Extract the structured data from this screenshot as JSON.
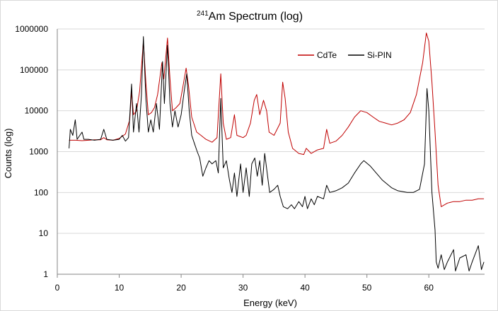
{
  "chart_data": {
    "type": "line",
    "title": {
      "sup": "241",
      "main": "Am Spectrum (log)"
    },
    "xlabel": "Energy (keV)",
    "ylabel": "Counts (log)",
    "xlim": [
      0,
      69
    ],
    "ylim": [
      1,
      1000000
    ],
    "yscale": "log",
    "x_ticks": [
      0,
      10,
      20,
      30,
      40,
      50,
      60
    ],
    "y_ticks": [
      {
        "value": 1,
        "label": "1"
      },
      {
        "value": 10,
        "label": "10"
      },
      {
        "value": 100,
        "label": "100"
      },
      {
        "value": 1000,
        "label": "1000"
      },
      {
        "value": 10000,
        "label": "10000"
      },
      {
        "value": 100000,
        "label": "100000"
      },
      {
        "value": 1000000,
        "label": "1000000"
      }
    ],
    "grid": "horizontal",
    "legend_position": "top-right inside plot",
    "series": [
      {
        "name": "CdTe",
        "color": "#c00000",
        "points": [
          [
            1.9,
            1900
          ],
          [
            3,
            1900
          ],
          [
            4,
            1850
          ],
          [
            5,
            1900
          ],
          [
            6,
            1950
          ],
          [
            7,
            1950
          ],
          [
            7.5,
            2200
          ],
          [
            8,
            1950
          ],
          [
            9,
            1900
          ],
          [
            10,
            2100
          ],
          [
            11,
            2700
          ],
          [
            11.7,
            6000
          ],
          [
            12,
            30000
          ],
          [
            12.3,
            8000
          ],
          [
            12.8,
            10000
          ],
          [
            13.3,
            30000
          ],
          [
            13.9,
            500000
          ],
          [
            14.3,
            50000
          ],
          [
            14.7,
            8000
          ],
          [
            15.2,
            9000
          ],
          [
            15.7,
            12000
          ],
          [
            16.2,
            25000
          ],
          [
            16.9,
            150000
          ],
          [
            17.2,
            60000
          ],
          [
            17.8,
            600000
          ],
          [
            18.2,
            60000
          ],
          [
            18.6,
            10000
          ],
          [
            19.2,
            12000
          ],
          [
            19.8,
            15000
          ],
          [
            20.3,
            40000
          ],
          [
            20.8,
            110000
          ],
          [
            21.2,
            40000
          ],
          [
            21.7,
            7000
          ],
          [
            22.5,
            3000
          ],
          [
            23.2,
            2500
          ],
          [
            24,
            2000
          ],
          [
            25,
            1700
          ],
          [
            25.8,
            2200
          ],
          [
            26.4,
            80000
          ],
          [
            26.8,
            5000
          ],
          [
            27.3,
            2000
          ],
          [
            28,
            2200
          ],
          [
            28.6,
            8000
          ],
          [
            29,
            2500
          ],
          [
            30,
            2200
          ],
          [
            30.5,
            2500
          ],
          [
            31.2,
            5000
          ],
          [
            31.8,
            18000
          ],
          [
            32.2,
            25000
          ],
          [
            32.7,
            8000
          ],
          [
            33.3,
            18000
          ],
          [
            33.8,
            10000
          ],
          [
            34.2,
            3000
          ],
          [
            35,
            2500
          ],
          [
            36,
            5000
          ],
          [
            36.4,
            50000
          ],
          [
            36.8,
            20000
          ],
          [
            37.3,
            3000
          ],
          [
            38,
            1200
          ],
          [
            39,
            900
          ],
          [
            39.8,
            850
          ],
          [
            40.2,
            1200
          ],
          [
            41,
            900
          ],
          [
            42,
            1100
          ],
          [
            43,
            1200
          ],
          [
            43.5,
            3500
          ],
          [
            44,
            1600
          ],
          [
            45,
            1800
          ],
          [
            46,
            2500
          ],
          [
            47,
            4000
          ],
          [
            48,
            7000
          ],
          [
            49,
            10000
          ],
          [
            50,
            9000
          ],
          [
            51,
            7000
          ],
          [
            52,
            5500
          ],
          [
            53,
            5000
          ],
          [
            54,
            4500
          ],
          [
            55,
            5000
          ],
          [
            56,
            6000
          ],
          [
            57,
            9000
          ],
          [
            58,
            25000
          ],
          [
            59,
            150000
          ],
          [
            59.6,
            800000
          ],
          [
            60,
            500000
          ],
          [
            60.5,
            50000
          ],
          [
            61,
            3000
          ],
          [
            61.5,
            150
          ],
          [
            62,
            45
          ],
          [
            63,
            55
          ],
          [
            64,
            60
          ],
          [
            65,
            60
          ],
          [
            66,
            65
          ],
          [
            67,
            65
          ],
          [
            68,
            70
          ],
          [
            68.9,
            70
          ]
        ]
      },
      {
        "name": "Si-PIN",
        "color": "#000000",
        "points": [
          [
            1.9,
            1200
          ],
          [
            2.1,
            3500
          ],
          [
            2.5,
            2500
          ],
          [
            2.9,
            6000
          ],
          [
            3.2,
            2000
          ],
          [
            4,
            3000
          ],
          [
            4.3,
            2000
          ],
          [
            5,
            2000
          ],
          [
            6,
            1900
          ],
          [
            7,
            2000
          ],
          [
            7.5,
            3500
          ],
          [
            8,
            2000
          ],
          [
            9,
            1900
          ],
          [
            10,
            2000
          ],
          [
            10.5,
            2500
          ],
          [
            11,
            1800
          ],
          [
            11.5,
            2200
          ],
          [
            12,
            45000
          ],
          [
            12.3,
            3000
          ],
          [
            12.8,
            15000
          ],
          [
            13.2,
            3000
          ],
          [
            13.6,
            25000
          ],
          [
            13.9,
            650000
          ],
          [
            14.3,
            20000
          ],
          [
            14.7,
            3000
          ],
          [
            15.1,
            6000
          ],
          [
            15.5,
            3000
          ],
          [
            16,
            15000
          ],
          [
            16.5,
            3500
          ],
          [
            17,
            160000
          ],
          [
            17.3,
            15000
          ],
          [
            17.8,
            400000
          ],
          [
            18.2,
            15000
          ],
          [
            18.6,
            4000
          ],
          [
            19,
            10000
          ],
          [
            19.5,
            4000
          ],
          [
            20,
            8000
          ],
          [
            20.5,
            30000
          ],
          [
            20.9,
            80000
          ],
          [
            21.3,
            10000
          ],
          [
            21.7,
            2500
          ],
          [
            22.2,
            1500
          ],
          [
            22.6,
            1000
          ],
          [
            23,
            700
          ],
          [
            23.5,
            250
          ],
          [
            24,
            400
          ],
          [
            24.5,
            600
          ],
          [
            25,
            500
          ],
          [
            25.6,
            600
          ],
          [
            26,
            300
          ],
          [
            26.4,
            20000
          ],
          [
            26.8,
            400
          ],
          [
            27.3,
            600
          ],
          [
            27.8,
            200
          ],
          [
            28.2,
            100
          ],
          [
            28.6,
            300
          ],
          [
            29,
            80
          ],
          [
            29.6,
            500
          ],
          [
            30,
            100
          ],
          [
            30.5,
            400
          ],
          [
            31,
            80
          ],
          [
            31.4,
            500
          ],
          [
            31.9,
            700
          ],
          [
            32.3,
            250
          ],
          [
            32.7,
            600
          ],
          [
            33.1,
            150
          ],
          [
            33.5,
            900
          ],
          [
            33.9,
            300
          ],
          [
            34.3,
            100
          ],
          [
            35,
            120
          ],
          [
            35.6,
            150
          ],
          [
            36,
            80
          ],
          [
            36.5,
            45
          ],
          [
            37.2,
            40
          ],
          [
            37.8,
            50
          ],
          [
            38.3,
            40
          ],
          [
            39,
            60
          ],
          [
            39.6,
            45
          ],
          [
            40,
            80
          ],
          [
            40.4,
            40
          ],
          [
            41,
            70
          ],
          [
            41.5,
            50
          ],
          [
            42,
            80
          ],
          [
            43,
            70
          ],
          [
            43.5,
            150
          ],
          [
            44,
            100
          ],
          [
            45,
            110
          ],
          [
            46,
            130
          ],
          [
            47,
            170
          ],
          [
            48,
            300
          ],
          [
            49,
            500
          ],
          [
            49.5,
            600
          ],
          [
            50.5,
            450
          ],
          [
            51.5,
            300
          ],
          [
            52.5,
            200
          ],
          [
            54,
            130
          ],
          [
            55,
            110
          ],
          [
            56.5,
            100
          ],
          [
            57.5,
            100
          ],
          [
            58.5,
            120
          ],
          [
            59.3,
            500
          ],
          [
            59.7,
            35000
          ],
          [
            60,
            10000
          ],
          [
            60.5,
            100
          ],
          [
            61,
            12
          ],
          [
            61.2,
            2
          ],
          [
            61.5,
            1.4
          ],
          [
            62,
            3
          ],
          [
            62.5,
            1.3
          ],
          [
            63,
            2
          ],
          [
            64,
            4
          ],
          [
            64.3,
            1.2
          ],
          [
            65,
            2.5
          ],
          [
            66,
            3
          ],
          [
            66.5,
            1.2
          ],
          [
            67,
            2
          ],
          [
            68,
            5
          ],
          [
            68.5,
            1.3
          ],
          [
            68.9,
            2
          ]
        ]
      }
    ]
  }
}
